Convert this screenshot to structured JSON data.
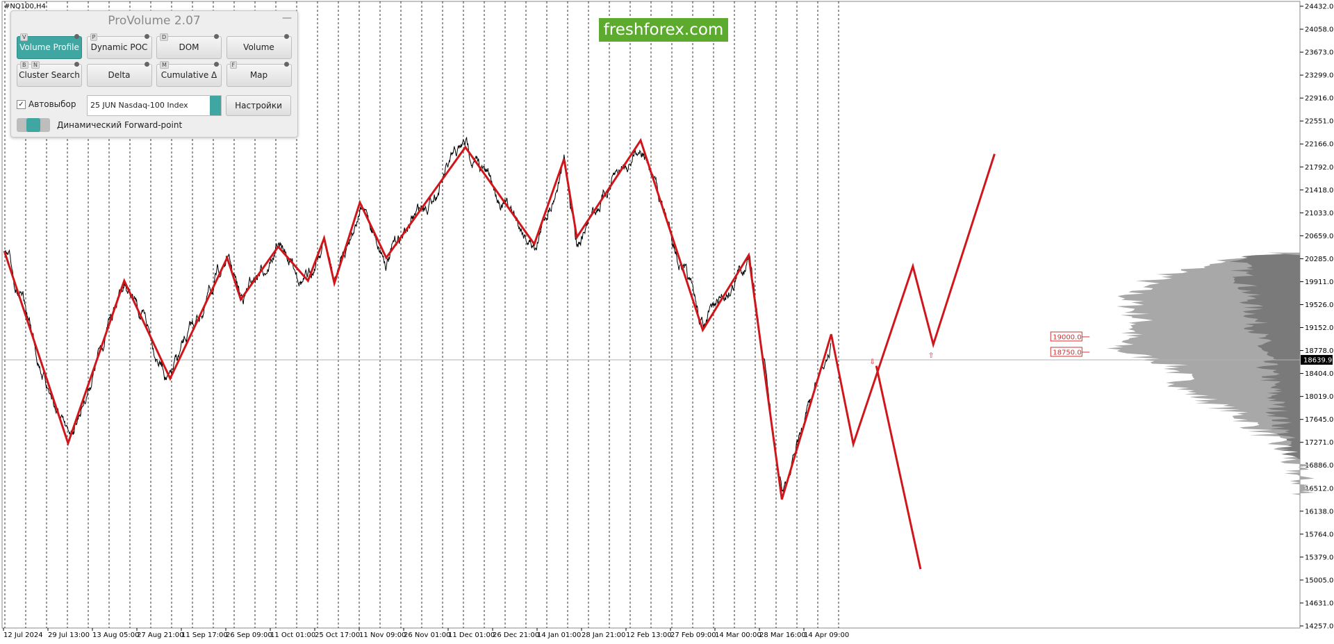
{
  "header": {
    "symbol": "#NQ100,H4"
  },
  "watermark": "freshforex.com",
  "panel": {
    "title": "ProVolume 2.07",
    "buttons": [
      {
        "keys": [
          "V"
        ],
        "label": "Volume Profile"
      },
      {
        "keys": [
          "P"
        ],
        "label": "Dynamic POC"
      },
      {
        "keys": [
          "D"
        ],
        "label": "DOM"
      },
      {
        "keys": [],
        "label": "Volume"
      },
      {
        "keys": [
          "B",
          "N"
        ],
        "label": "Cluster Search"
      },
      {
        "keys": [],
        "label": "Delta"
      },
      {
        "keys": [
          "M"
        ],
        "label": "Cumulative Δ"
      },
      {
        "keys": [
          "F"
        ],
        "label": "Map"
      }
    ],
    "autoselect": "Автовыбор",
    "instrument": "25 JUN Nasdaq-100 Index",
    "settings": "Настройки",
    "toggle": "Динамический Forward-point"
  },
  "price_axis": {
    "labels": [
      "24432.0",
      "24058.0",
      "23673.0",
      "23299.0",
      "22916.0",
      "22551.0",
      "22166.0",
      "21792.0",
      "21418.0",
      "21033.0",
      "20659.0",
      "20285.0",
      "19911.0",
      "19526.0",
      "19152.0",
      "18778.0",
      "18404.0",
      "18019.0",
      "17645.0",
      "17271.0",
      "16886.0",
      "16512.0",
      "16138.0",
      "15764.0",
      "15379.0",
      "15005.0",
      "14631.0",
      "14257.0"
    ],
    "current": "18639.9"
  },
  "time_axis": [
    "12 Jul 2024",
    "29 Jul 13:00",
    "13 Aug 05:00",
    "27 Aug 21:00",
    "11 Sep 17:00",
    "26 Sep 09:00",
    "11 Oct 01:00",
    "25 Oct 17:00",
    "11 Nov 09:00",
    "26 Nov 01:00",
    "11 Dec 01:00",
    "26 Dec 21:00",
    "14 Jan 01:00",
    "28 Jan 21:00",
    "12 Feb 13:00",
    "27 Feb 09:00",
    "14 Mar 00:00",
    "28 Mar 16:00",
    "14 Apr 09:00"
  ],
  "levels": [
    "19000.0",
    "18750.0"
  ]
}
